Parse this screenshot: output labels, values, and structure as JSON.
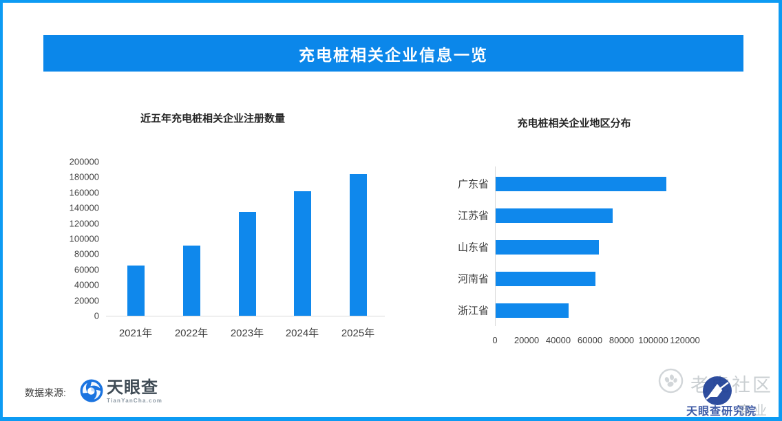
{
  "header": {
    "title": "充电桩相关企业信息一览",
    "bg_color": "#0b87ea",
    "text_color": "#ffffff"
  },
  "accent_color": "#0f88ec",
  "border_color": "#0d9bf3",
  "chart_data": [
    {
      "type": "bar",
      "title": "近五年充电桩相关企业注册数量",
      "categories": [
        "2021年",
        "2022年",
        "2023年",
        "2024年",
        "2025年"
      ],
      "values": [
        65000,
        91000,
        135000,
        162000,
        184000
      ],
      "ylim": [
        0,
        200000
      ],
      "yticks": [
        200000,
        180000,
        160000,
        140000,
        120000,
        100000,
        80000,
        60000,
        40000,
        20000,
        0
      ],
      "bar_color": "#0f88ec",
      "grid": false,
      "legend": "none"
    },
    {
      "type": "bar-horizontal",
      "title": "充电桩相关企业地区分布",
      "categories": [
        "广东省",
        "江苏省",
        "山东省",
        "河南省",
        "浙江省"
      ],
      "values": [
        108000,
        74000,
        65000,
        63000,
        46000
      ],
      "xlim": [
        0,
        120000
      ],
      "xticks": [
        0,
        20000,
        40000,
        60000,
        80000,
        100000,
        120000
      ],
      "bar_color": "#0f88ec",
      "grid": false,
      "legend": "none"
    }
  ],
  "footer": {
    "source_label": "数据来源:",
    "logo_name": "天眼查",
    "logo_subtext": "TianYanCha.com"
  },
  "watermark": {
    "community": "老虎社区",
    "blue_text": "天眼查研究院",
    "gray_text": "商业"
  }
}
